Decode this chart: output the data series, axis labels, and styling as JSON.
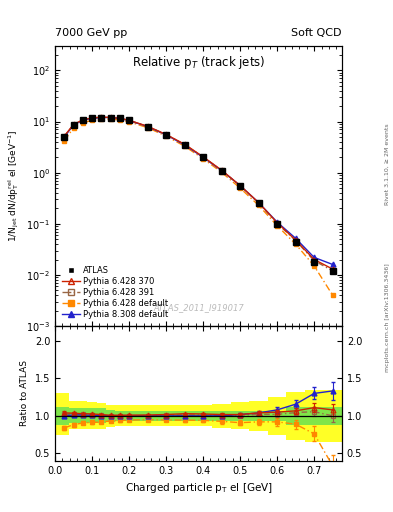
{
  "title_left": "7000 GeV pp",
  "title_right": "Soft QCD",
  "plot_title": "Relative p$_{T}$ (track jets)",
  "xlabel": "Charged particle p$_{T}$ el [GeV]",
  "ylabel_main": "1/N$_{jet}$ dN/dp$_{T}^{rel}$ el [GeV$^{-1}$]",
  "ylabel_ratio": "Ratio to ATLAS",
  "watermark": "ATLAS_2011_I919017",
  "right_label_top": "Rivet 3.1.10, ≥ 2M events",
  "right_label_bot": "mcplots.cern.ch [arXiv:1306.3436]",
  "x_centers": [
    0.025,
    0.05,
    0.075,
    0.1,
    0.125,
    0.15,
    0.175,
    0.2,
    0.25,
    0.3,
    0.35,
    0.4,
    0.45,
    0.5,
    0.55,
    0.6,
    0.65,
    0.7,
    0.75
  ],
  "x_edges": [
    0.0,
    0.0375,
    0.0625,
    0.0875,
    0.1125,
    0.1375,
    0.1625,
    0.1875,
    0.225,
    0.275,
    0.325,
    0.375,
    0.425,
    0.475,
    0.525,
    0.575,
    0.625,
    0.675,
    0.725,
    0.775
  ],
  "y_atlas": [
    5.0,
    8.5,
    10.5,
    11.5,
    12.0,
    12.0,
    11.5,
    10.5,
    8.0,
    5.5,
    3.5,
    2.0,
    1.1,
    0.55,
    0.25,
    0.1,
    0.045,
    0.018,
    0.012
  ],
  "y_atlas_err": [
    0.3,
    0.4,
    0.5,
    0.5,
    0.5,
    0.5,
    0.5,
    0.4,
    0.3,
    0.2,
    0.15,
    0.1,
    0.06,
    0.03,
    0.015,
    0.008,
    0.004,
    0.002,
    0.001
  ],
  "y_py6_370": [
    5.2,
    8.8,
    10.8,
    11.8,
    12.2,
    12.1,
    11.6,
    10.6,
    8.1,
    5.6,
    3.6,
    2.05,
    1.12,
    0.56,
    0.26,
    0.105,
    0.048,
    0.02,
    0.013
  ],
  "y_py6_391": [
    5.1,
    8.7,
    10.7,
    11.7,
    12.1,
    12.0,
    11.5,
    10.5,
    8.0,
    5.55,
    3.55,
    2.02,
    1.11,
    0.555,
    0.255,
    0.102,
    0.047,
    0.019,
    0.012
  ],
  "y_py6_def": [
    4.2,
    7.5,
    9.5,
    10.5,
    11.0,
    11.2,
    10.8,
    9.9,
    7.6,
    5.2,
    3.3,
    1.88,
    1.02,
    0.5,
    0.23,
    0.092,
    0.04,
    0.015,
    0.004
  ],
  "y_py8_def": [
    5.0,
    8.6,
    10.6,
    11.6,
    12.0,
    12.0,
    11.5,
    10.5,
    8.0,
    5.5,
    3.5,
    2.0,
    1.1,
    0.56,
    0.26,
    0.108,
    0.052,
    0.022,
    0.016
  ],
  "ratio_py6_370": [
    1.04,
    1.035,
    1.029,
    1.026,
    1.017,
    1.008,
    1.009,
    1.01,
    1.012,
    1.018,
    1.029,
    1.025,
    1.018,
    1.018,
    1.04,
    1.05,
    1.067,
    1.11,
    1.08
  ],
  "ratio_py6_391": [
    1.02,
    1.024,
    1.019,
    1.017,
    1.008,
    1.0,
    1.0,
    1.0,
    1.0,
    1.009,
    1.014,
    1.01,
    1.009,
    1.009,
    1.02,
    1.02,
    1.044,
    1.056,
    1.0
  ],
  "ratio_py6_def": [
    0.84,
    0.882,
    0.905,
    0.913,
    0.917,
    0.933,
    0.939,
    0.943,
    0.95,
    0.945,
    0.943,
    0.94,
    0.927,
    0.909,
    0.92,
    0.92,
    0.889,
    0.76,
    0.333
  ],
  "ratio_py8_def": [
    1.0,
    1.012,
    1.01,
    1.009,
    1.0,
    1.0,
    1.0,
    1.0,
    1.0,
    1.0,
    1.0,
    1.0,
    1.0,
    1.018,
    1.04,
    1.08,
    1.156,
    1.3,
    1.333
  ],
  "ratio_err_py6_370": [
    0.02,
    0.015,
    0.012,
    0.01,
    0.01,
    0.01,
    0.01,
    0.01,
    0.01,
    0.012,
    0.015,
    0.015,
    0.018,
    0.02,
    0.025,
    0.03,
    0.04,
    0.06,
    0.08
  ],
  "ratio_err_py6_391": [
    0.02,
    0.015,
    0.012,
    0.01,
    0.01,
    0.01,
    0.01,
    0.01,
    0.01,
    0.012,
    0.015,
    0.015,
    0.018,
    0.02,
    0.025,
    0.03,
    0.04,
    0.06,
    0.08
  ],
  "ratio_err_py6_def": [
    0.03,
    0.025,
    0.02,
    0.018,
    0.018,
    0.018,
    0.018,
    0.018,
    0.018,
    0.02,
    0.022,
    0.025,
    0.03,
    0.035,
    0.04,
    0.05,
    0.06,
    0.1,
    0.15
  ],
  "ratio_err_py8_def": [
    0.02,
    0.015,
    0.012,
    0.01,
    0.01,
    0.01,
    0.01,
    0.01,
    0.01,
    0.012,
    0.015,
    0.015,
    0.018,
    0.02,
    0.025,
    0.035,
    0.05,
    0.08,
    0.12
  ],
  "green_band_y1": [
    0.88,
    0.9,
    0.9,
    0.9,
    0.9,
    0.92,
    0.93,
    0.93,
    0.93,
    0.93,
    0.93,
    0.93,
    0.93,
    0.93,
    0.93,
    0.93,
    0.88,
    0.88,
    0.88
  ],
  "green_band_y2": [
    1.12,
    1.1,
    1.1,
    1.1,
    1.1,
    1.08,
    1.07,
    1.07,
    1.07,
    1.07,
    1.07,
    1.07,
    1.07,
    1.07,
    1.07,
    1.07,
    1.12,
    1.12,
    1.12
  ],
  "yellow_band_y1": [
    0.75,
    0.82,
    0.82,
    0.83,
    0.83,
    0.85,
    0.86,
    0.86,
    0.86,
    0.86,
    0.86,
    0.86,
    0.84,
    0.82,
    0.8,
    0.75,
    0.68,
    0.65,
    0.65
  ],
  "yellow_band_y2": [
    1.3,
    1.2,
    1.2,
    1.18,
    1.17,
    1.15,
    1.14,
    1.14,
    1.14,
    1.14,
    1.14,
    1.14,
    1.16,
    1.18,
    1.2,
    1.25,
    1.32,
    1.35,
    1.35
  ],
  "color_atlas": "#000000",
  "color_py6_370": "#cc2200",
  "color_py6_391": "#996644",
  "color_py6_def": "#ff8800",
  "color_py8_def": "#2222cc",
  "xlim": [
    0.0,
    0.775
  ],
  "ylim_main": [
    0.001,
    300
  ],
  "ylim_ratio": [
    0.4,
    2.2
  ],
  "legend_entries": [
    "ATLAS",
    "Pythia 6.428 370",
    "Pythia 6.428 391",
    "Pythia 6.428 default",
    "Pythia 8.308 default"
  ]
}
